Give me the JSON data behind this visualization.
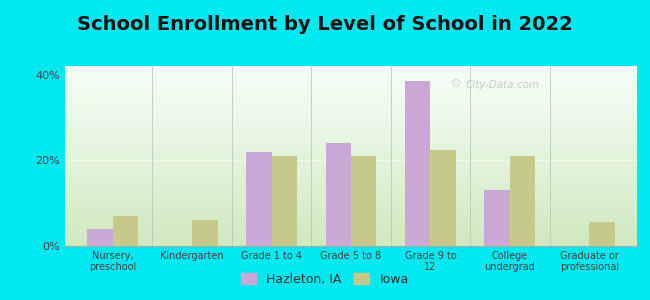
{
  "title": "School Enrollment by Level of School in 2022",
  "categories": [
    "Nursery,\npreschool",
    "Kindergarten",
    "Grade 1 to 4",
    "Grade 5 to 8",
    "Grade 9 to\n12",
    "College\nundergrad",
    "Graduate or\nprofessional"
  ],
  "hazleton": [
    4.0,
    0.0,
    22.0,
    24.0,
    38.5,
    13.0,
    0.0
  ],
  "iowa": [
    7.0,
    6.0,
    21.0,
    21.0,
    22.5,
    21.0,
    5.5
  ],
  "hazleton_color": "#c9a8d6",
  "iowa_color": "#c5c98a",
  "background_outer": "#00e8f0",
  "background_inner_top": "#f5fff8",
  "background_inner_bottom": "#d0e8c0",
  "ylim": [
    0,
    42
  ],
  "yticks": [
    0,
    20,
    40
  ],
  "ytick_labels": [
    "0%",
    "20%",
    "40%"
  ],
  "title_fontsize": 14,
  "legend_labels": [
    "Hazleton, IA",
    "Iowa"
  ],
  "watermark": "City-Data.com",
  "bar_width": 0.32
}
